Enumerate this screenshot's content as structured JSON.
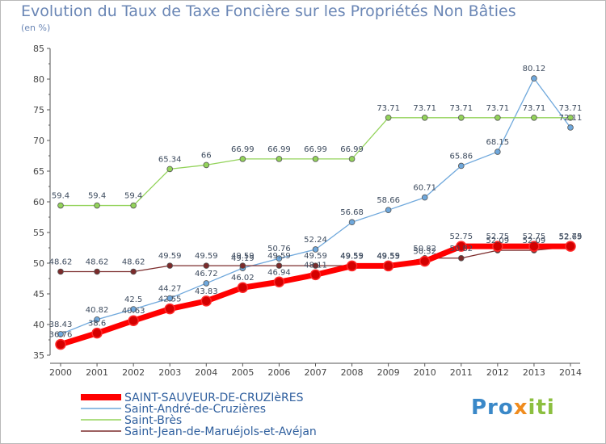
{
  "title": "Evolution du Taux de Taxe Foncière sur les Propriétés Non Bâties",
  "unit_label": "(en %)",
  "logo": {
    "part1": "Pro",
    "part2": "x",
    "part3": "iti"
  },
  "chart_data": {
    "type": "line",
    "title": "Evolution du Taux de Taxe Foncière sur les Propriétés Non Bâties",
    "ylabel": "(en %)",
    "xlabel": "",
    "x": [
      "2000",
      "2001",
      "2002",
      "2003",
      "2004",
      "2005",
      "2006",
      "2007",
      "2008",
      "2009",
      "2010",
      "2011",
      "2012",
      "2013",
      "2014"
    ],
    "ylim": [
      35,
      85
    ],
    "yticks": [
      35,
      40,
      45,
      50,
      55,
      60,
      65,
      70,
      75,
      80,
      85
    ],
    "grid": false,
    "legend": "bottom-left",
    "series": [
      {
        "name": "SAINT-SAUVEUR-DE-CRUZIèRES",
        "color": "#ff0000",
        "values": [
          36.76,
          38.6,
          40.63,
          42.55,
          43.83,
          46.02,
          46.94,
          48.11,
          49.55,
          49.55,
          50.32,
          52.75,
          52.75,
          52.75,
          52.75
        ]
      },
      {
        "name": "Saint-André-de-Cruzières",
        "color": "#6fa8dc",
        "values": [
          38.43,
          40.82,
          42.5,
          44.27,
          46.72,
          49.19,
          50.76,
          52.24,
          56.68,
          58.66,
          60.71,
          65.86,
          68.15,
          80.12,
          72.11
        ]
      },
      {
        "name": "Saint-Brès",
        "color": "#93d35a",
        "values": [
          59.4,
          59.4,
          59.4,
          65.34,
          66,
          66.99,
          66.99,
          66.99,
          66.99,
          73.71,
          73.71,
          73.71,
          73.71,
          73.71,
          73.71
        ]
      },
      {
        "name": "Saint-Jean-de-Maruéjols-et-Avéjan",
        "color": "#7b2b2b",
        "values": [
          48.62,
          48.62,
          48.62,
          49.59,
          49.59,
          49.59,
          49.59,
          49.59,
          49.59,
          49.59,
          50.82,
          50.82,
          52.09,
          52.09,
          52.69
        ]
      }
    ]
  }
}
